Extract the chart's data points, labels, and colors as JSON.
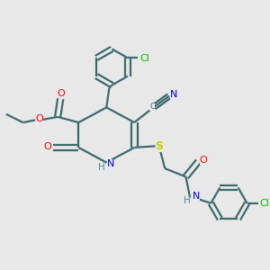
{
  "background_color": "#e8e8e8",
  "bond_color": "#3d6b6b",
  "colors": {
    "O": "#ff0000",
    "N": "#0000cc",
    "S": "#cccc00",
    "Cl": "#00bb00",
    "H": "#5588aa"
  },
  "figsize": [
    3.0,
    3.0
  ],
  "dpi": 100
}
